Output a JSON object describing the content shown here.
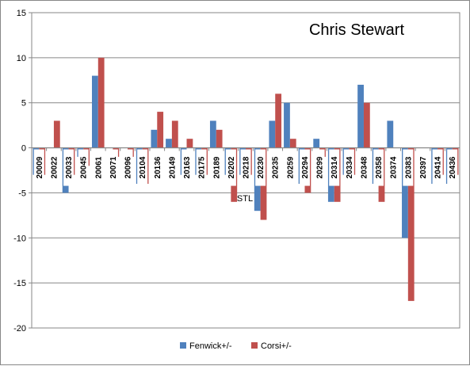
{
  "chart_data": {
    "type": "bar",
    "title": "Chris Stewart",
    "annotation": "STL",
    "categories": [
      "20009",
      "20022",
      "20033",
      "20045",
      "20061",
      "20071",
      "20096",
      "20104",
      "20136",
      "20149",
      "20163",
      "20175",
      "20189",
      "20202",
      "20218",
      "20230",
      "20235",
      "20259",
      "20294",
      "20299",
      "20314",
      "20334",
      "20348",
      "20358",
      "20374",
      "20383",
      "20397",
      "20414",
      "20436"
    ],
    "series": [
      {
        "name": "Fenwick+/-",
        "color": "#4f81bd",
        "values": [
          -3,
          0,
          -5,
          -1,
          8,
          0,
          0,
          -4,
          2,
          1,
          -3,
          -3,
          3,
          -3,
          -3,
          -7,
          3,
          5,
          -4,
          1,
          -6,
          -3,
          7,
          -4,
          3,
          -10,
          0,
          -4,
          -4
        ]
      },
      {
        "name": "Corsi+/-",
        "color": "#c0504d",
        "values": [
          -3,
          3,
          -3,
          -2,
          10,
          -1,
          -1,
          -4,
          4,
          3,
          1,
          -3,
          2,
          -6,
          -3,
          -8,
          6,
          1,
          -5,
          -1,
          -6,
          -3,
          5,
          -6,
          0,
          -17,
          0,
          -3,
          -3
        ]
      }
    ],
    "ylim": [
      -20,
      15
    ],
    "yticks": [
      "15",
      "10",
      "5",
      "0",
      "-5",
      "-10",
      "-15",
      "-20"
    ],
    "grid": true,
    "legend_position": "bottom"
  }
}
